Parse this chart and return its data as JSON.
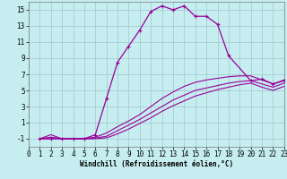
{
  "bg_color": "#c6eef0",
  "grid_color": "#a0c8cc",
  "line_color": "#990099",
  "xlabel": "Windchill (Refroidissement éolien,°C)",
  "xlim": [
    0,
    23
  ],
  "ylim": [
    -2,
    16
  ],
  "xticks": [
    0,
    1,
    2,
    3,
    4,
    5,
    6,
    7,
    8,
    9,
    10,
    11,
    12,
    13,
    14,
    15,
    16,
    17,
    18,
    19,
    20,
    21,
    22,
    23
  ],
  "yticks": [
    -1,
    1,
    3,
    5,
    7,
    9,
    11,
    13,
    15
  ],
  "curve1_x": [
    1,
    2,
    3,
    4,
    5,
    6,
    7,
    8,
    9,
    10,
    11,
    12,
    13,
    14,
    15,
    16,
    17,
    18,
    20,
    21,
    22,
    23
  ],
  "curve1_y": [
    -1,
    -1,
    -1,
    -1,
    -1,
    -0.5,
    4,
    8.5,
    10.5,
    12.5,
    14.8,
    15.5,
    15.0,
    15.5,
    14.2,
    14.2,
    13.2,
    9.3,
    6.2,
    6.4,
    5.8,
    6.2
  ],
  "curve2_x": [
    1,
    2,
    3,
    4,
    5,
    6,
    7,
    8,
    9,
    10,
    11,
    12,
    13,
    14,
    15,
    16,
    17,
    18,
    19,
    20,
    21,
    22,
    23
  ],
  "curve2_y": [
    -1,
    -0.5,
    -1,
    -1,
    -1,
    -0.8,
    -0.3,
    0.5,
    1.2,
    2.0,
    3.0,
    4.0,
    4.8,
    5.5,
    6.0,
    6.3,
    6.5,
    6.7,
    6.8,
    6.8,
    6.3,
    5.8,
    6.3
  ],
  "curve3_x": [
    1,
    2,
    3,
    4,
    5,
    6,
    7,
    8,
    9,
    10,
    11,
    12,
    13,
    14,
    15,
    16,
    17,
    18,
    19,
    20,
    21,
    22,
    23
  ],
  "curve3_y": [
    -1,
    -0.8,
    -1,
    -1,
    -1,
    -0.9,
    -0.7,
    0.0,
    0.7,
    1.4,
    2.2,
    3.0,
    3.8,
    4.4,
    5.0,
    5.3,
    5.6,
    5.9,
    6.1,
    6.2,
    5.8,
    5.4,
    5.9
  ],
  "curve4_x": [
    1,
    2,
    3,
    4,
    5,
    6,
    7,
    8,
    9,
    10,
    11,
    12,
    13,
    14,
    15,
    16,
    17,
    18,
    19,
    20,
    21,
    22,
    23
  ],
  "curve4_y": [
    -1,
    -1.0,
    -1,
    -1,
    -1,
    -1.0,
    -0.9,
    -0.4,
    0.2,
    0.9,
    1.6,
    2.4,
    3.1,
    3.7,
    4.3,
    4.7,
    5.1,
    5.4,
    5.7,
    5.9,
    5.4,
    5.0,
    5.5
  ]
}
